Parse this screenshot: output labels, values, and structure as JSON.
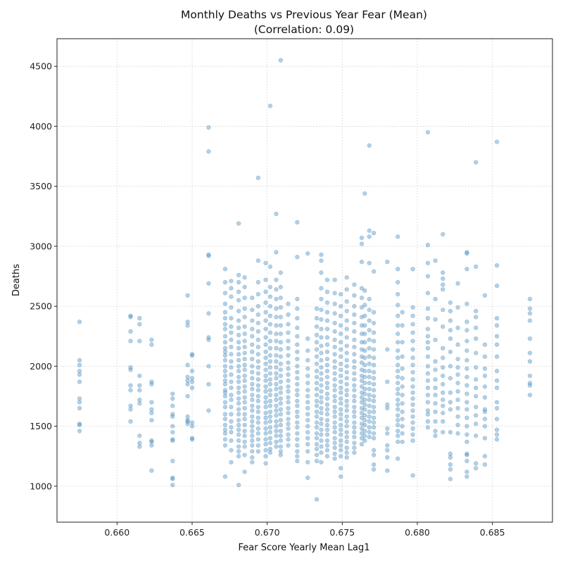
{
  "chart_data": {
    "type": "scatter",
    "title": "Monthly Deaths vs Previous Year Fear (Mean)",
    "subtitle": "(Correlation: 0.09)",
    "xlabel": "Fear Score Yearly Mean Lag1",
    "ylabel": "Deaths",
    "xlim": [
      0.656,
      0.689
    ],
    "ylim": [
      700,
      4730
    ],
    "xticks": [
      "0.660",
      "0.665",
      "0.670",
      "0.675",
      "0.680",
      "0.685"
    ],
    "xtick_values": [
      0.66,
      0.665,
      0.67,
      0.675,
      0.68,
      0.685
    ],
    "yticks": [
      "1000",
      "1500",
      "2000",
      "2500",
      "3000",
      "3500",
      "4000",
      "4500"
    ],
    "ytick_values": [
      1000,
      1500,
      2000,
      2500,
      3000,
      3500,
      4000,
      4500
    ],
    "grid": true,
    "point_color": "#4a8fc2",
    "groups": [
      {
        "x": 0.6575,
        "y": [
          2370,
          2050,
          2010,
          1960,
          1930,
          1870,
          1730,
          1700,
          1650,
          1520,
          1510,
          1460
        ]
      },
      {
        "x": 0.6609,
        "y": [
          2420,
          2410,
          2290,
          2210,
          1990,
          1970,
          1840,
          1800,
          1670,
          1640,
          1540
        ]
      },
      {
        "x": 0.6615,
        "y": [
          2400,
          2350,
          2210,
          1920,
          1840,
          1800,
          1720,
          1690,
          1420,
          1360,
          1330
        ]
      },
      {
        "x": 0.6623,
        "y": [
          2220,
          2180,
          1870,
          1850,
          1700,
          1640,
          1610,
          1550,
          1380,
          1370,
          1340,
          1130
        ]
      },
      {
        "x": 0.6637,
        "y": [
          1770,
          1730,
          1670,
          1600,
          1580,
          1500,
          1450,
          1390,
          1380,
          1210,
          1070,
          1060,
          1010
        ]
      },
      {
        "x": 0.6647,
        "y": [
          2590,
          2370,
          2340,
          2010,
          1910,
          1880,
          1850,
          1750,
          1580,
          1550,
          1540,
          1520
        ]
      },
      {
        "x": 0.665,
        "y": [
          2100,
          2090,
          1960,
          1900,
          1870,
          1820,
          1530,
          1500,
          1400,
          1390
        ]
      },
      {
        "x": 0.6661,
        "y": [
          3990,
          3790,
          2930,
          2920,
          2690,
          2440,
          2240,
          2220,
          2000,
          1850,
          1630
        ]
      },
      {
        "x": 0.6672,
        "y": [
          2810,
          2700,
          2610,
          2520,
          2450,
          2400,
          2350,
          2310,
          2250,
          2200,
          2150,
          2120,
          2090,
          2050,
          2000,
          1960,
          1920,
          1880,
          1850,
          1800,
          1780,
          1750,
          1700,
          1660,
          1600,
          1560,
          1510,
          1470,
          1440,
          1390,
          1340,
          1080
        ]
      },
      {
        "x": 0.6676,
        "y": [
          2710,
          2650,
          2580,
          2490,
          2400,
          2330,
          2280,
          2220,
          2160,
          2100,
          2040,
          1990,
          1930,
          1870,
          1820,
          1760,
          1720,
          1660,
          1600,
          1540,
          1490,
          1450,
          1380,
          1300,
          1200
        ]
      },
      {
        "x": 0.6681,
        "y": [
          3190,
          2760,
          2700,
          2620,
          2550,
          2460,
          2380,
          2320,
          2260,
          2200,
          2150,
          2100,
          2050,
          2000,
          1960,
          1910,
          1870,
          1820,
          1780,
          1730,
          1690,
          1640,
          1600,
          1550,
          1510,
          1470,
          1430,
          1380,
          1330,
          1290,
          1250,
          1010
        ]
      },
      {
        "x": 0.6685,
        "y": [
          2740,
          2660,
          2570,
          2480,
          2410,
          2330,
          2270,
          2210,
          2160,
          2110,
          2060,
          2010,
          1970,
          1920,
          1880,
          1830,
          1790,
          1740,
          1700,
          1650,
          1600,
          1560,
          1510,
          1460,
          1420,
          1370,
          1330,
          1260,
          1120
        ]
      },
      {
        "x": 0.669,
        "y": [
          2570,
          2470,
          2380,
          2310,
          2250,
          2180,
          2120,
          2060,
          2000,
          1950,
          1900,
          1850,
          1810,
          1760,
          1720,
          1670,
          1630,
          1580,
          1540,
          1500,
          1460,
          1420,
          1380,
          1340,
          1290,
          1240,
          1200
        ]
      },
      {
        "x": 0.6694,
        "y": [
          3570,
          2880,
          2700,
          2600,
          2500,
          2430,
          2360,
          2290,
          2220,
          2160,
          2100,
          2040,
          1990,
          1940,
          1890,
          1840,
          1800,
          1750,
          1710,
          1660,
          1620,
          1570,
          1530,
          1480,
          1440,
          1390,
          1340,
          1290
        ]
      },
      {
        "x": 0.6699,
        "y": [
          2860,
          2720,
          2620,
          2530,
          2450,
          2380,
          2310,
          2240,
          2180,
          2120,
          2070,
          2020,
          1970,
          1920,
          1880,
          1830,
          1790,
          1740,
          1700,
          1660,
          1610,
          1570,
          1530,
          1480,
          1440,
          1390,
          1350,
          1300,
          1250,
          1190
        ]
      },
      {
        "x": 0.6702,
        "y": [
          4170,
          2830,
          2660,
          2580,
          2500,
          2420,
          2350,
          2280,
          2210,
          2150,
          2090,
          2040,
          1990,
          1940,
          1890,
          1850,
          1800,
          1760,
          1710,
          1670,
          1620,
          1580,
          1540,
          1490,
          1450,
          1400,
          1360,
          1310,
          1280
        ]
      },
      {
        "x": 0.6706,
        "y": [
          3270,
          2950,
          2720,
          2640,
          2560,
          2480,
          2410,
          2340,
          2270,
          2210,
          2150,
          2090,
          2040,
          1990,
          1940,
          1900,
          1850,
          1810,
          1760,
          1720,
          1670,
          1630,
          1590,
          1540,
          1500,
          1460,
          1420,
          1370,
          1330
        ]
      },
      {
        "x": 0.6709,
        "y": [
          4550,
          2780,
          2660,
          2570,
          2490,
          2410,
          2340,
          2270,
          2200,
          2140,
          2080,
          2020,
          1970,
          1920,
          1870,
          1820,
          1780,
          1730,
          1690,
          1640,
          1600,
          1550,
          1510,
          1460,
          1420,
          1380,
          1330,
          1290,
          1260
        ]
      },
      {
        "x": 0.6714,
        "y": [
          2520,
          2430,
          2350,
          2280,
          2210,
          2150,
          2090,
          2030,
          1980,
          1930,
          1880,
          1830,
          1790,
          1740,
          1700,
          1650,
          1610,
          1560,
          1520,
          1480,
          1430,
          1390,
          1340
        ]
      },
      {
        "x": 0.672,
        "y": [
          3200,
          2910,
          2560,
          2480,
          2400,
          2320,
          2250,
          2180,
          2120,
          2060,
          2000,
          1950,
          1900,
          1850,
          1800,
          1760,
          1710,
          1670,
          1620,
          1580,
          1530,
          1490,
          1440,
          1390,
          1340,
          1290,
          1250,
          1210
        ]
      },
      {
        "x": 0.6727,
        "y": [
          2940,
          2230,
          2130,
          2050,
          1980,
          1920,
          1860,
          1800,
          1750,
          1700,
          1650,
          1600,
          1550,
          1500,
          1450,
          1400,
          1350,
          1290,
          1200,
          1070
        ]
      },
      {
        "x": 0.6733,
        "y": [
          2480,
          2400,
          2330,
          2260,
          2200,
          2140,
          2080,
          2020,
          1960,
          1910,
          1860,
          1810,
          1760,
          1710,
          1670,
          1620,
          1580,
          1530,
          1490,
          1440,
          1400,
          1350,
          1310,
          1260,
          1210,
          890
        ]
      },
      {
        "x": 0.6736,
        "y": [
          2930,
          2880,
          2780,
          2650,
          2560,
          2470,
          2390,
          2310,
          2240,
          2170,
          2110,
          2050,
          1990,
          1940,
          1890,
          1840,
          1790,
          1740,
          1700,
          1650,
          1610,
          1560,
          1520,
          1470,
          1430,
          1380,
          1330,
          1280,
          1200
        ]
      },
      {
        "x": 0.674,
        "y": [
          2720,
          2620,
          2530,
          2450,
          2380,
          2310,
          2240,
          2180,
          2120,
          2060,
          2010,
          1960,
          1910,
          1860,
          1820,
          1770,
          1730,
          1680,
          1640,
          1600,
          1550,
          1510,
          1470,
          1430,
          1380,
          1340,
          1300,
          1250
        ]
      },
      {
        "x": 0.6745,
        "y": [
          2720,
          2610,
          2520,
          2440,
          2360,
          2290,
          2220,
          2160,
          2100,
          2040,
          1990,
          1940,
          1890,
          1840,
          1800,
          1750,
          1710,
          1660,
          1620,
          1580,
          1530,
          1490,
          1450,
          1400,
          1360,
          1320,
          1270,
          1230
        ]
      },
      {
        "x": 0.6749,
        "y": [
          2600,
          2500,
          2420,
          2340,
          2270,
          2200,
          2140,
          2080,
          2020,
          1970,
          1920,
          1870,
          1820,
          1780,
          1730,
          1690,
          1640,
          1600,
          1560,
          1510,
          1470,
          1430,
          1380,
          1340,
          1300,
          1250,
          1150,
          1080
        ]
      },
      {
        "x": 0.6753,
        "y": [
          2740,
          2640,
          2540,
          2460,
          2380,
          2310,
          2240,
          2170,
          2110,
          2050,
          2000,
          1950,
          1900,
          1850,
          1800,
          1760,
          1710,
          1670,
          1630,
          1580,
          1540,
          1500,
          1450,
          1410,
          1370,
          1320,
          1280,
          1240
        ]
      },
      {
        "x": 0.6758,
        "y": [
          2680,
          2590,
          2500,
          2430,
          2360,
          2290,
          2220,
          2160,
          2100,
          2040,
          1990,
          1940,
          1890,
          1840,
          1800,
          1750,
          1710,
          1660,
          1620,
          1580,
          1530,
          1490,
          1450,
          1410,
          1360,
          1320,
          1280
        ]
      },
      {
        "x": 0.6763,
        "y": [
          3070,
          3020,
          2870,
          2650,
          2570,
          2490,
          2410,
          2340,
          2270,
          2200,
          2140,
          2080,
          2030,
          1970,
          1920,
          1880,
          1830,
          1780,
          1740,
          1700,
          1650,
          1610,
          1570,
          1520,
          1480,
          1440,
          1400,
          1350
        ]
      },
      {
        "x": 0.6765,
        "y": [
          3440,
          2630,
          2510,
          2420,
          2340,
          2270,
          2200,
          2130,
          2070,
          2010,
          1960,
          1910,
          1860,
          1810,
          1770,
          1720,
          1680,
          1640,
          1590,
          1550,
          1510,
          1460,
          1420,
          1380
        ]
      },
      {
        "x": 0.6768,
        "y": [
          3840,
          3130,
          3080,
          2860,
          2560,
          2470,
          2380,
          2300,
          2220,
          2150,
          2080,
          2020,
          1960,
          1910,
          1860,
          1810,
          1760,
          1720,
          1670,
          1620,
          1580,
          1540,
          1490,
          1450,
          1410
        ]
      },
      {
        "x": 0.6771,
        "y": [
          3110,
          2790,
          2450,
          2360,
          2280,
          2210,
          2140,
          2070,
          2010,
          1950,
          1900,
          1850,
          1800,
          1750,
          1710,
          1660,
          1620,
          1570,
          1530,
          1490,
          1440,
          1400,
          1300,
          1260,
          1180,
          1140
        ]
      },
      {
        "x": 0.678,
        "y": [
          2870,
          2140,
          1870,
          1680,
          1650,
          1480,
          1440,
          1340,
          1300,
          1240,
          1130
        ]
      },
      {
        "x": 0.6787,
        "y": [
          3080,
          2810,
          2700,
          2600,
          2510,
          2420,
          2340,
          2270,
          2200,
          2130,
          2070,
          2010,
          1960,
          1910,
          1860,
          1810,
          1770,
          1720,
          1680,
          1640,
          1590,
          1550,
          1510,
          1460,
          1420,
          1370,
          1230
        ]
      },
      {
        "x": 0.679,
        "y": [
          2450,
          2340,
          2200,
          2080,
          1980,
          1900,
          1830,
          1760,
          1690,
          1620,
          1560,
          1500,
          1440,
          1370
        ]
      },
      {
        "x": 0.6797,
        "y": [
          2810,
          2490,
          2420,
          2350,
          2280,
          2210,
          2140,
          2070,
          2010,
          1950,
          1890,
          1830,
          1780,
          1730,
          1680,
          1630,
          1580,
          1530,
          1480,
          1430,
          1380,
          1090
        ]
      },
      {
        "x": 0.6807,
        "y": [
          3950,
          3010,
          2860,
          2750,
          2610,
          2480,
          2400,
          2310,
          2250,
          2200,
          2150,
          2080,
          2000,
          1940,
          1880,
          1820,
          1760,
          1700,
          1630,
          1600,
          1540,
          1490
        ]
      },
      {
        "x": 0.6812,
        "y": [
          2880,
          2560,
          2390,
          2220,
          2040,
          1970,
          1890,
          1820,
          1760,
          1690,
          1620,
          1540,
          1460,
          1420
        ]
      },
      {
        "x": 0.6817,
        "y": [
          3100,
          2780,
          2730,
          2680,
          2640,
          2470,
          2330,
          2150,
          2070,
          1990,
          1920,
          1850,
          1780,
          1720,
          1670,
          1610,
          1540,
          1450
        ]
      },
      {
        "x": 0.6822,
        "y": [
          2530,
          2460,
          2380,
          2300,
          2230,
          2120,
          2000,
          1900,
          1780,
          1700,
          1640,
          1450,
          1270,
          1240,
          1180,
          1140,
          1060
        ]
      },
      {
        "x": 0.6827,
        "y": [
          2690,
          2490,
          2320,
          2180,
          2060,
          1990,
          1930,
          1860,
          1790,
          1720,
          1650,
          1580,
          1510,
          1440
        ]
      },
      {
        "x": 0.6833,
        "y": [
          2950,
          2940,
          2810,
          2520,
          2370,
          2300,
          2210,
          2130,
          2050,
          1980,
          1910,
          1840,
          1770,
          1700,
          1640,
          1570,
          1500,
          1430,
          1370,
          1270,
          1260,
          1210,
          1120,
          1080
        ]
      },
      {
        "x": 0.6839,
        "y": [
          3700,
          2830,
          2460,
          2410,
          2320,
          2230,
          2110,
          1990,
          1890,
          1820,
          1750,
          1660,
          1590,
          1520,
          1420,
          1190,
          1150
        ]
      },
      {
        "x": 0.6845,
        "y": [
          2590,
          2180,
          2080,
          1980,
          1920,
          1830,
          1740,
          1640,
          1620,
          1560,
          1500,
          1400,
          1250,
          1180
        ]
      },
      {
        "x": 0.6853,
        "y": [
          3870,
          2840,
          2670,
          2400,
          2340,
          2250,
          2180,
          2080,
          1960,
          1880,
          1820,
          1700,
          1650,
          1560,
          1470,
          1430,
          1390
        ]
      },
      {
        "x": 0.6875,
        "y": [
          2560,
          2480,
          2440,
          2380,
          2230,
          2110,
          2040,
          1920,
          1860,
          1840,
          1760
        ]
      }
    ]
  }
}
